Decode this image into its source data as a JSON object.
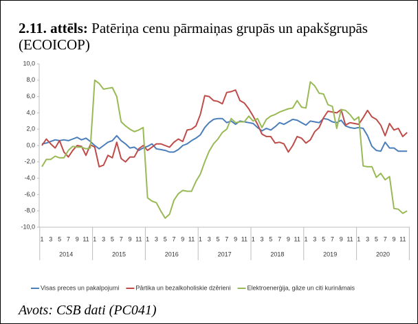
{
  "chart_data": {
    "type": "line",
    "figure_label": "2.11. attēls:",
    "title": "Patēriņa cenu pārmaiņas grupās un apakšgrupās (ECOICOP)",
    "source": "Avots: CSB dati (PC041)",
    "years": [
      "2014",
      "2015",
      "2016",
      "2017",
      "2018",
      "2019",
      "2020"
    ],
    "categories": [
      "1",
      null,
      "3",
      null,
      "5",
      null,
      "7",
      null,
      "9",
      null,
      "11",
      null,
      "1",
      null,
      "3",
      null,
      "5",
      null,
      "7",
      null,
      "9",
      null,
      "11",
      null,
      "1",
      null,
      "3",
      null,
      "5",
      null,
      "7",
      null,
      "9",
      null,
      "11",
      null,
      "1",
      null,
      "3",
      null,
      "5",
      null,
      "7",
      null,
      "9",
      null,
      "11",
      null,
      "1",
      null,
      "3",
      null,
      "5",
      null,
      "7",
      null,
      "9",
      null,
      "11",
      null,
      "1",
      null,
      "3",
      null,
      "5",
      null,
      "7",
      null,
      "9",
      null,
      "11",
      null,
      "1",
      null,
      "3",
      null,
      "5",
      null,
      "7",
      null,
      "9",
      null,
      "11",
      null
    ],
    "series": [
      {
        "name": "Visas preces un pakalpojumi",
        "color": "#4a7ebb",
        "values": [
          0.2,
          0.3,
          0.5,
          0.7,
          0.6,
          0.7,
          0.6,
          0.8,
          1.0,
          0.7,
          0.9,
          0.5,
          0.0,
          -0.4,
          0.0,
          0.4,
          0.6,
          1.2,
          0.6,
          0.2,
          -0.3,
          -0.2,
          -0.6,
          -0.3,
          -0.1,
          0.2,
          -0.4,
          -0.5,
          -0.6,
          -0.8,
          -0.8,
          -0.5,
          0.0,
          0.2,
          0.6,
          0.9,
          1.3,
          2.2,
          2.8,
          3.2,
          3.3,
          3.3,
          2.8,
          3.0,
          2.6,
          3.0,
          2.9,
          2.8,
          2.7,
          2.2,
          1.8,
          2.1,
          1.9,
          2.3,
          2.8,
          2.6,
          2.9,
          3.2,
          3.1,
          2.8,
          2.5,
          3.0,
          2.9,
          2.8,
          3.3,
          3.2,
          2.9,
          2.8,
          3.1,
          2.4,
          2.2,
          2.1,
          2.2,
          2.1,
          1.2,
          -0.1,
          -0.6,
          -0.7,
          0.4,
          -0.3,
          -0.3,
          -0.7,
          -0.7,
          -0.7
        ]
      },
      {
        "name": "Pārtika un bezalkoholiskie dzērieni",
        "color": "#be4b48",
        "values": [
          0.0,
          0.8,
          0.2,
          -0.3,
          0.6,
          -0.8,
          -1.4,
          -0.6,
          0.0,
          -0.1,
          -1.2,
          0.1,
          -0.2,
          -2.6,
          -2.4,
          -1.2,
          -1.5,
          0.4,
          -1.6,
          -2.0,
          -1.4,
          -1.4,
          -0.4,
          0.0,
          -0.6,
          -0.2,
          0.2,
          0.2,
          0.0,
          -0.2,
          0.4,
          0.8,
          0.5,
          1.9,
          2.0,
          2.4,
          3.8,
          6.1,
          6.0,
          5.5,
          5.4,
          5.1,
          6.5,
          6.6,
          6.8,
          5.5,
          5.2,
          4.5,
          3.6,
          2.6,
          1.4,
          1.1,
          1.1,
          0.3,
          0.4,
          0.2,
          -0.8,
          0.0,
          1.1,
          0.9,
          0.3,
          0.7,
          1.7,
          2.2,
          3.4,
          4.2,
          4.1,
          4.0,
          4.4,
          2.5,
          2.8,
          2.7,
          2.6,
          3.4,
          4.3,
          3.5,
          3.2,
          2.5,
          1.2,
          2.7,
          1.9,
          2.1,
          1.1,
          1.6
        ]
      },
      {
        "name": "Elektroenerģija, gāze un citi kurināmais",
        "color": "#98b954",
        "values": [
          -2.6,
          -1.7,
          -1.7,
          -1.3,
          -1.5,
          -1.5,
          -0.6,
          -0.1,
          -0.2,
          -0.2,
          -0.4,
          -0.3,
          8.0,
          7.6,
          6.9,
          7.0,
          7.1,
          6.0,
          2.9,
          2.4,
          2.0,
          1.7,
          1.9,
          2.2,
          -6.4,
          -6.8,
          -7.0,
          -8.0,
          -8.9,
          -8.4,
          -6.7,
          -5.9,
          -5.5,
          -5.6,
          -5.6,
          -4.4,
          -3.5,
          -2.0,
          -0.7,
          0.2,
          0.8,
          1.6,
          2.0,
          3.3,
          2.8,
          2.9,
          2.9,
          3.6,
          3.0,
          3.3,
          2.2,
          3.2,
          3.6,
          3.8,
          4.1,
          4.3,
          4.5,
          4.6,
          5.5,
          4.7,
          4.6,
          7.8,
          7.3,
          6.4,
          6.3,
          5.0,
          4.8,
          2.1,
          4.4,
          4.3,
          3.8,
          3.1,
          3.5,
          -2.5,
          -2.6,
          -2.6,
          -3.9,
          -3.4,
          -4.2,
          -3.8,
          -7.7,
          -7.8,
          -8.3,
          -8.0
        ]
      }
    ],
    "ylim": [
      -10,
      10
    ],
    "yticks": [
      {
        "value": -10,
        "label": "-10,0"
      },
      {
        "value": -8,
        "label": "-8,0"
      },
      {
        "value": -6,
        "label": "-6,0"
      },
      {
        "value": -4,
        "label": "-4,0"
      },
      {
        "value": -2,
        "label": "-2,0"
      },
      {
        "value": 0,
        "label": "0,0"
      },
      {
        "value": 2,
        "label": "2,0"
      },
      {
        "value": 4,
        "label": "4,0"
      },
      {
        "value": 6,
        "label": "6,0"
      },
      {
        "value": 8,
        "label": "8,0"
      },
      {
        "value": 10,
        "label": "10,0"
      }
    ],
    "grid": false,
    "legend": "bottom"
  }
}
